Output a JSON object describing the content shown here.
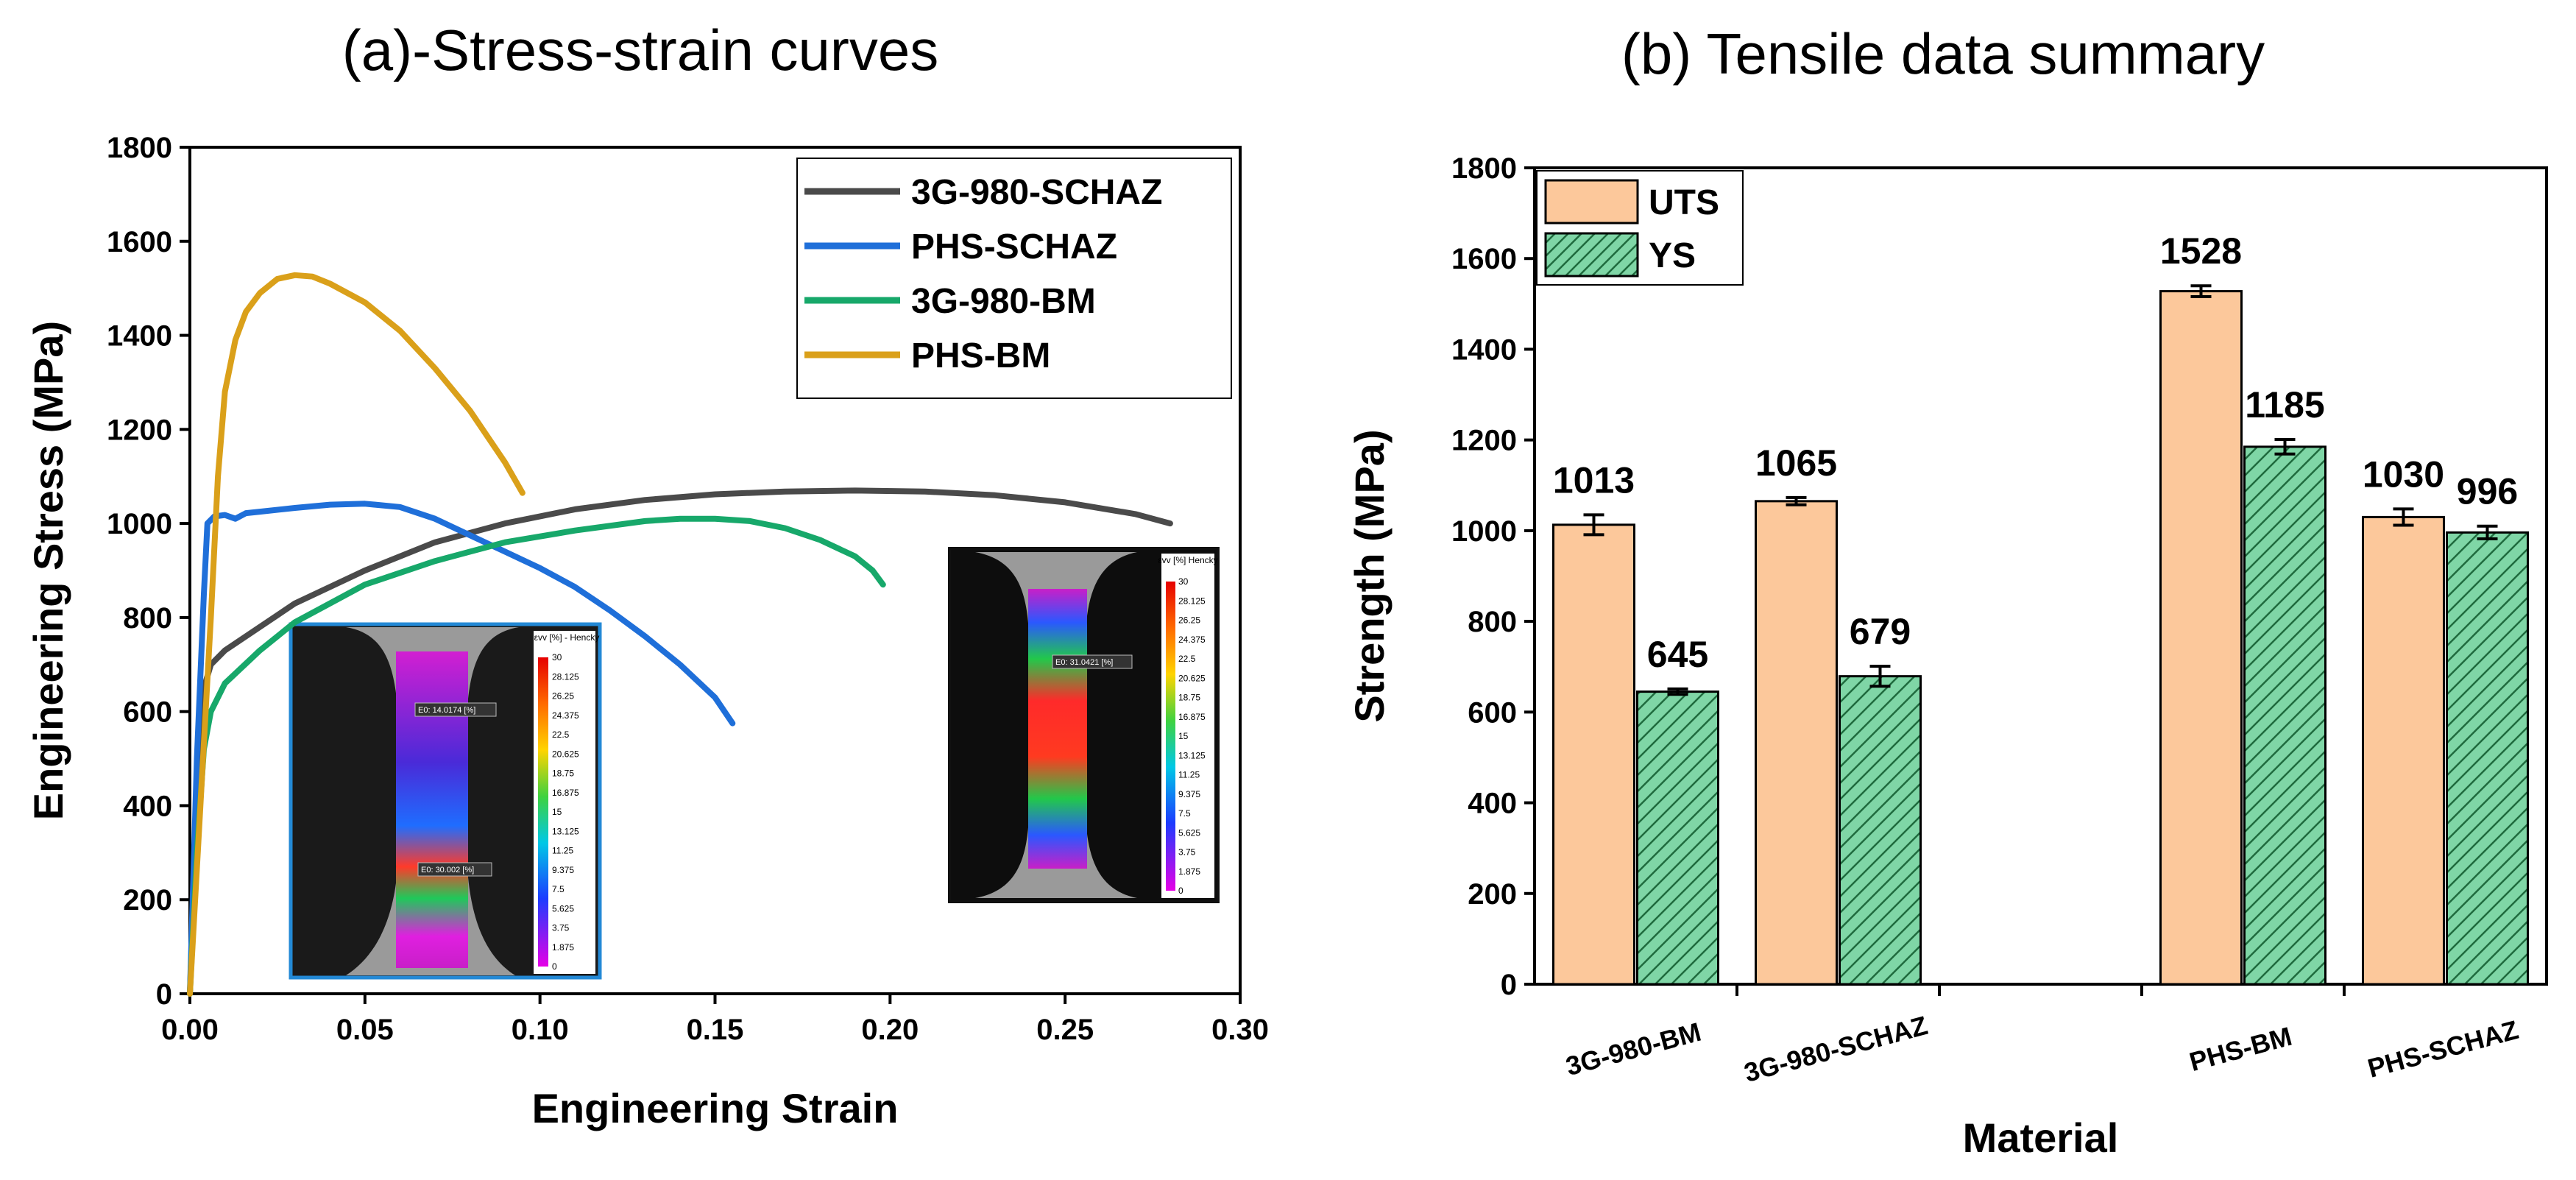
{
  "colors": {
    "series_3g980_schaz": "#4a4a4a",
    "series_phs_schaz": "#1f6fd9",
    "series_3g980_bm": "#17a86a",
    "series_phs_bm": "#daa01a",
    "uts_fill": "#fcc89b",
    "ys_fill": "#7fd6a6",
    "ys_hatch": "#1f6b3e",
    "inset_border_left": "#2389d6",
    "inset_border_right": "#111111"
  },
  "chart_data": [
    {
      "id": "a",
      "type": "line",
      "title": "(a)-Stress-strain curves",
      "xlabel": "Engineering Strain",
      "ylabel": "Engineering Stress (MPa)",
      "xlim": [
        0,
        0.3
      ],
      "ylim": [
        0,
        1800
      ],
      "xticks": [
        "0.00",
        "0.05",
        "0.10",
        "0.15",
        "0.20",
        "0.25",
        "0.30"
      ],
      "yticks": [
        "0",
        "200",
        "400",
        "600",
        "800",
        "1000",
        "1200",
        "1400",
        "1600",
        "1800"
      ],
      "legend_position": "top-right",
      "series": [
        {
          "name": "3G-980-SCHAZ",
          "color_key": "series_3g980_schaz",
          "points": [
            [
              0,
              0
            ],
            [
              0.002,
              400
            ],
            [
              0.004,
              650
            ],
            [
              0.006,
              700
            ],
            [
              0.01,
              730
            ],
            [
              0.02,
              780
            ],
            [
              0.03,
              830
            ],
            [
              0.05,
              900
            ],
            [
              0.07,
              960
            ],
            [
              0.09,
              1000
            ],
            [
              0.11,
              1030
            ],
            [
              0.13,
              1050
            ],
            [
              0.15,
              1062
            ],
            [
              0.17,
              1068
            ],
            [
              0.19,
              1070
            ],
            [
              0.21,
              1068
            ],
            [
              0.23,
              1060
            ],
            [
              0.25,
              1045
            ],
            [
              0.27,
              1020
            ],
            [
              0.28,
              1000
            ]
          ]
        },
        {
          "name": "PHS-SCHAZ",
          "color_key": "series_phs_schaz",
          "points": [
            [
              0,
              0
            ],
            [
              0.002,
              500
            ],
            [
              0.004,
              850
            ],
            [
              0.005,
              1000
            ],
            [
              0.007,
              1015
            ],
            [
              0.01,
              1018
            ],
            [
              0.013,
              1010
            ],
            [
              0.016,
              1022
            ],
            [
              0.02,
              1025
            ],
            [
              0.03,
              1033
            ],
            [
              0.04,
              1040
            ],
            [
              0.05,
              1042
            ],
            [
              0.06,
              1035
            ],
            [
              0.07,
              1010
            ],
            [
              0.08,
              975
            ],
            [
              0.09,
              940
            ],
            [
              0.1,
              905
            ],
            [
              0.11,
              865
            ],
            [
              0.12,
              815
            ],
            [
              0.13,
              760
            ],
            [
              0.14,
              700
            ],
            [
              0.15,
              630
            ],
            [
              0.155,
              575
            ]
          ]
        },
        {
          "name": "3G-980-BM",
          "color_key": "series_3g980_bm",
          "points": [
            [
              0,
              0
            ],
            [
              0.002,
              300
            ],
            [
              0.004,
              520
            ],
            [
              0.006,
              600
            ],
            [
              0.01,
              660
            ],
            [
              0.02,
              730
            ],
            [
              0.03,
              790
            ],
            [
              0.05,
              870
            ],
            [
              0.07,
              920
            ],
            [
              0.09,
              960
            ],
            [
              0.11,
              985
            ],
            [
              0.13,
              1005
            ],
            [
              0.14,
              1010
            ],
            [
              0.15,
              1010
            ],
            [
              0.16,
              1005
            ],
            [
              0.17,
              990
            ],
            [
              0.18,
              965
            ],
            [
              0.19,
              930
            ],
            [
              0.195,
              900
            ],
            [
              0.198,
              870
            ]
          ]
        },
        {
          "name": "PHS-BM",
          "color_key": "series_phs_bm",
          "points": [
            [
              0,
              0
            ],
            [
              0.003,
              400
            ],
            [
              0.006,
              800
            ],
            [
              0.008,
              1100
            ],
            [
              0.01,
              1280
            ],
            [
              0.013,
              1390
            ],
            [
              0.016,
              1450
            ],
            [
              0.02,
              1490
            ],
            [
              0.025,
              1520
            ],
            [
              0.03,
              1528
            ],
            [
              0.035,
              1525
            ],
            [
              0.04,
              1510
            ],
            [
              0.05,
              1470
            ],
            [
              0.06,
              1410
            ],
            [
              0.07,
              1330
            ],
            [
              0.08,
              1240
            ],
            [
              0.09,
              1130
            ],
            [
              0.095,
              1065
            ]
          ]
        }
      ],
      "insets": [
        {
          "legend_title": "εvv [%] - Hencky",
          "scale": [
            "30",
            "28.125",
            "26.25",
            "24.375",
            "22.5",
            "20.625",
            "18.75",
            "16.875",
            "15",
            "13.125",
            "11.25",
            "9.375",
            "7.5",
            "5.625",
            "3.75",
            "1.875",
            "0"
          ],
          "probe_labels": [
            "E0: 14.0174 [%]",
            "E0: 30.002 [%]"
          ]
        },
        {
          "legend_title": "εvv [%] Hencky",
          "scale": [
            "30",
            "28.125",
            "26.25",
            "24.375",
            "22.5",
            "20.625",
            "18.75",
            "16.875",
            "15",
            "13.125",
            "11.25",
            "9.375",
            "7.5",
            "5.625",
            "3.75",
            "1.875",
            "0"
          ],
          "probe_labels": [
            "E0: 31.0421 [%]"
          ]
        }
      ]
    },
    {
      "id": "b",
      "type": "bar",
      "title": "(b) Tensile data summary",
      "xlabel": "Material",
      "ylabel": "Strength (MPa)",
      "ylim": [
        0,
        1800
      ],
      "yticks": [
        "0",
        "200",
        "400",
        "600",
        "800",
        "1000",
        "1200",
        "1400",
        "1600",
        "1800"
      ],
      "categories": [
        "3G-980-BM",
        "3G-980-SCHAZ",
        "",
        "PHS-BM",
        "PHS-SCHAZ"
      ],
      "legend_position": "top-left",
      "series": [
        {
          "name": "UTS",
          "color_key": "uts_fill",
          "values": [
            1013,
            1065,
            null,
            1528,
            1030
          ],
          "labels": [
            "1013",
            "1065",
            "",
            "1528",
            "1030"
          ],
          "errors": [
            22,
            8,
            null,
            12,
            18
          ]
        },
        {
          "name": "YS",
          "color_key": "ys_fill",
          "values": [
            645,
            679,
            null,
            1185,
            996
          ],
          "labels": [
            "645",
            "679",
            "",
            "1185",
            "996"
          ],
          "errors": [
            6,
            22,
            null,
            16,
            14
          ]
        }
      ]
    }
  ]
}
